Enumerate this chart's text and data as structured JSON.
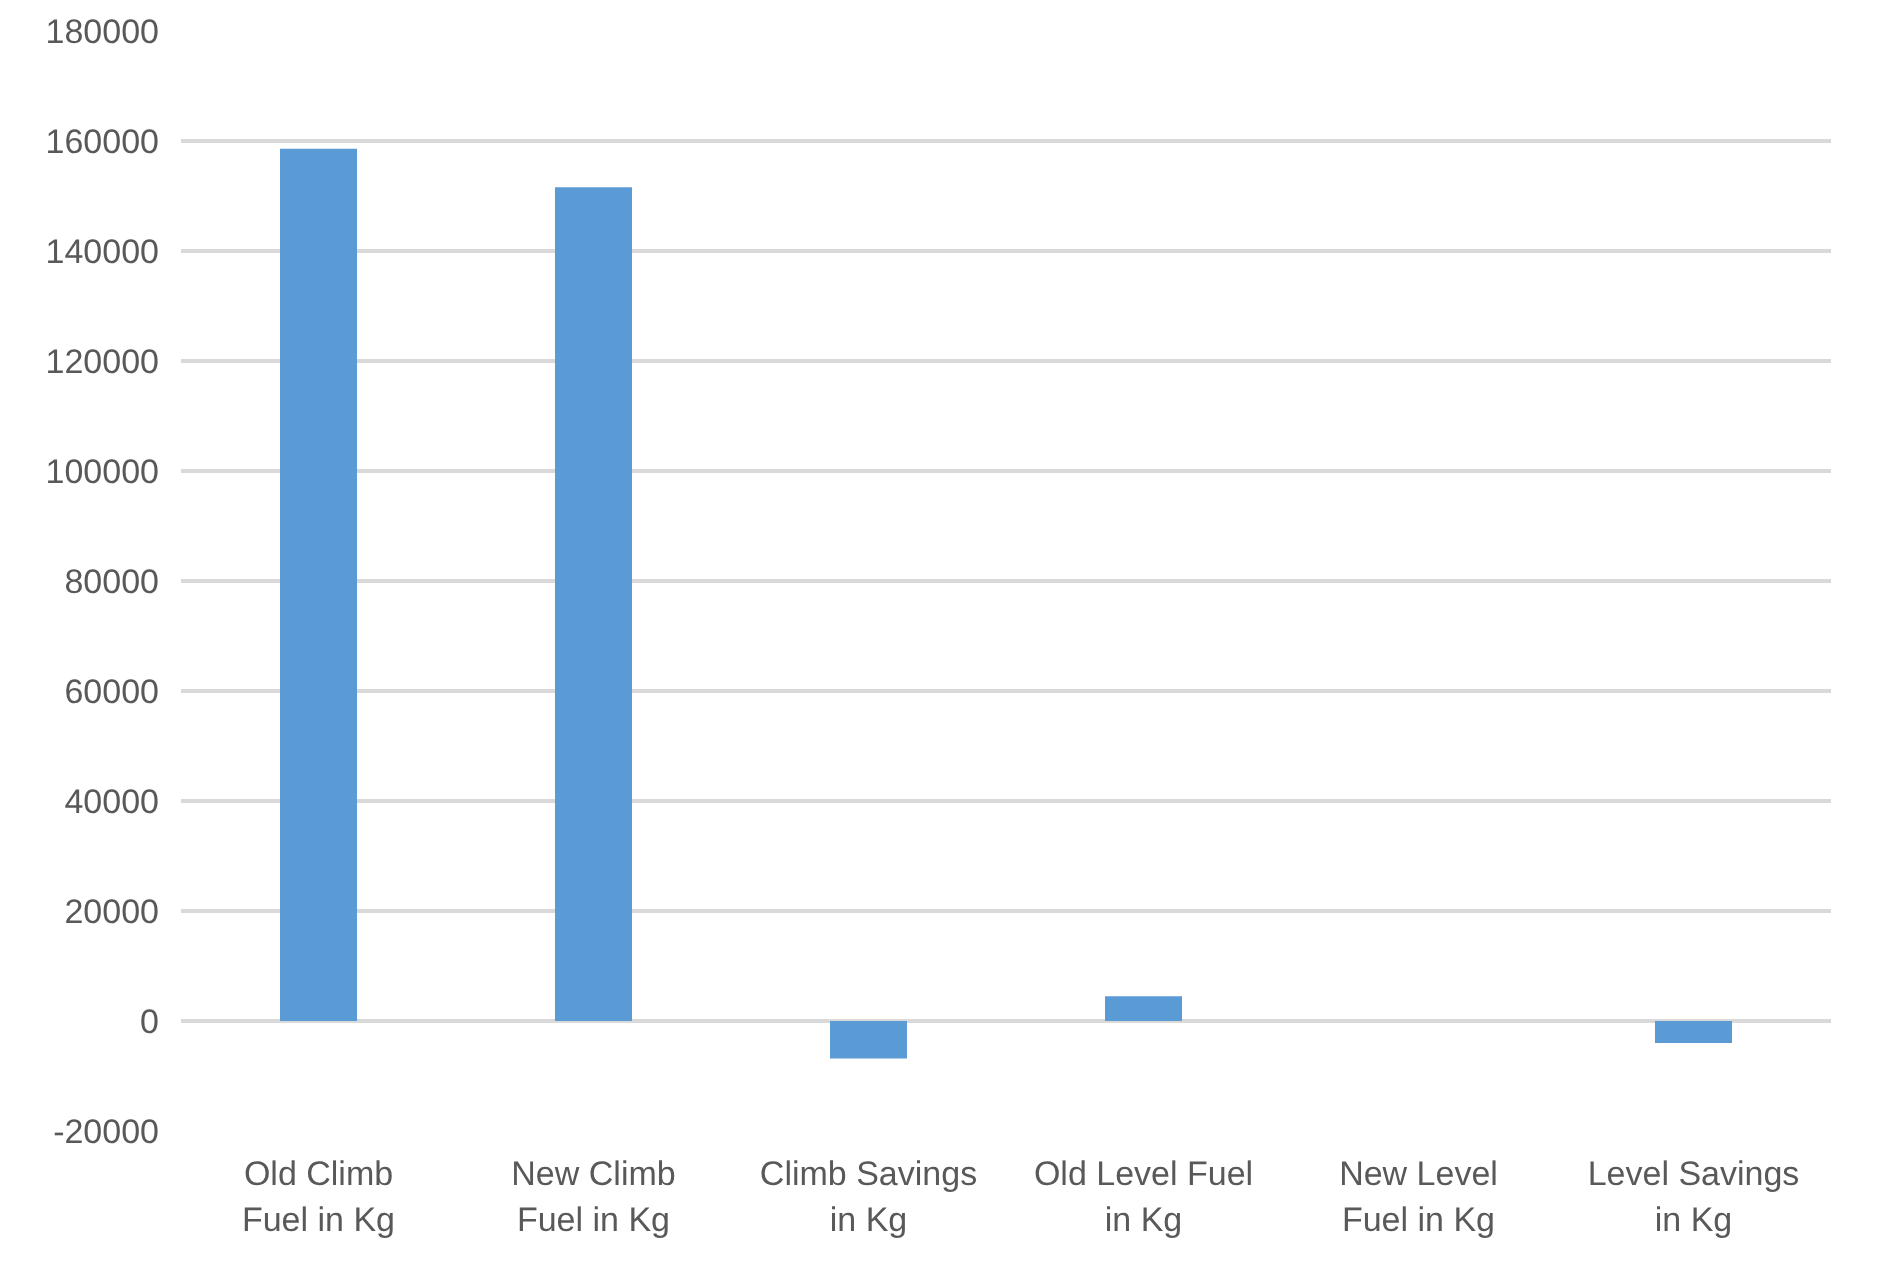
{
  "chart_data": {
    "type": "bar",
    "categories": [
      "Old Climb\nFuel in Kg",
      "New Climb\nFuel in Kg",
      "Climb Savings\nin Kg",
      "Old Level Fuel\nin Kg",
      "New Level\nFuel in Kg",
      "Level Savings\nin Kg"
    ],
    "values": [
      158600,
      151600,
      -6800,
      4500,
      0,
      -4000
    ],
    "color": "#5b9bd5",
    "ylim": [
      -20000,
      180000
    ],
    "yticks": [
      -20000,
      0,
      20000,
      40000,
      60000,
      80000,
      100000,
      120000,
      140000,
      160000,
      180000
    ],
    "grid": "y"
  }
}
